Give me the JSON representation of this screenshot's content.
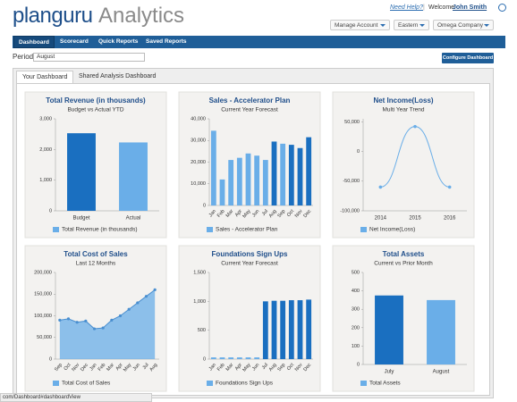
{
  "header": {
    "logo": "planguru",
    "product": "Analytics",
    "help": "Need Help?",
    "separator": "|",
    "welcome": "Welcome",
    "user": "John Smith",
    "menus": [
      "Manage Account",
      "Eastern",
      "Omega Company"
    ]
  },
  "nav": [
    "Dashboard",
    "Scorecard",
    "Quick Reports",
    "Saved Reports"
  ],
  "period": {
    "label": "Period",
    "value": "August"
  },
  "configure": "Configure Dashboard",
  "tabs": [
    "Your Dashboard",
    "Shared Analysis Dashboard"
  ],
  "status": "com/Dashboard#dashboardView",
  "chart_data": [
    {
      "type": "bar",
      "title": "Total Revenue (in thousands)",
      "subtitle": "Budget vs Actual YTD",
      "categories": [
        "Budget",
        "Actual"
      ],
      "series": [
        {
          "name": "Total Revenue (in thousands)",
          "color": "#6aaee8",
          "colors": [
            "#1a6fc0",
            "#6aaee8"
          ],
          "values": [
            2530,
            2230
          ]
        }
      ],
      "ylim": [
        0,
        3000
      ],
      "yticks": [
        0,
        {
          "value": 1000,
          "label": "1,000"
        },
        {
          "value": 2000,
          "label": "2,000"
        },
        {
          "value": 3000,
          "label": "3,000"
        }
      ]
    },
    {
      "type": "bar",
      "title": "Sales - Accelerator Plan",
      "subtitle": "Current Year Forecast",
      "categories": [
        "Jan",
        "Feb",
        "Mar",
        "Apr",
        "May",
        "Jun",
        "Jul",
        "Aug",
        "Sep",
        "Oct",
        "Nov",
        "Dec"
      ],
      "series": [
        {
          "name": "Sales - Accelerator Plan",
          "color": "#6aaee8",
          "colors": [
            "#6aaee8",
            "#6aaee8",
            "#6aaee8",
            "#6aaee8",
            "#6aaee8",
            "#6aaee8",
            "#6aaee8",
            "#1a6fc0",
            "#6aaee8",
            "#1a6fc0",
            "#1a6fc0",
            "#1a6fc0"
          ],
          "values": [
            34500,
            12000,
            21000,
            22000,
            24000,
            23000,
            21000,
            29500,
            28500,
            28000,
            26500,
            31500
          ]
        }
      ],
      "ylim": [
        0,
        40000
      ],
      "yticks": [
        0,
        {
          "value": 10000,
          "label": "10,000"
        },
        {
          "value": 20000,
          "label": "20,000"
        },
        {
          "value": 30000,
          "label": "30,000"
        },
        {
          "value": 40000,
          "label": "40,000"
        }
      ]
    },
    {
      "type": "line",
      "title": "Net Income(Loss)",
      "subtitle": "Multi Year Trend",
      "categories": [
        "2014",
        "2015",
        "2016"
      ],
      "series": [
        {
          "name": "Net Income(Loss)",
          "color": "#6aaee8",
          "values": [
            -60000,
            42000,
            -60000
          ]
        }
      ],
      "ylim": [
        -100000,
        55000
      ],
      "yticks": [
        {
          "value": -100000,
          "label": "-100,000"
        },
        {
          "value": -50000,
          "label": "-50,000"
        },
        0,
        {
          "value": 50000,
          "label": "50,000"
        }
      ]
    },
    {
      "type": "area",
      "title": "Total Cost of Sales",
      "subtitle": "Last 12 Months",
      "categories": [
        "Sep",
        "Oct",
        "Nov",
        "Dec",
        "Jan",
        "Feb",
        "Mar",
        "Apr",
        "May",
        "Jun",
        "Jul",
        "Aug"
      ],
      "series": [
        {
          "name": "Total Cost of Sales",
          "color": "#6aaee8",
          "values": [
            90000,
            93000,
            85000,
            88000,
            70000,
            72000,
            90000,
            100000,
            115000,
            130000,
            145000,
            160000
          ]
        }
      ],
      "ylim": [
        0,
        200000
      ],
      "yticks": [
        0,
        {
          "value": 50000,
          "label": "50,000"
        },
        {
          "value": 100000,
          "label": "100,000"
        },
        {
          "value": 150000,
          "label": "150,000"
        },
        {
          "value": 200000,
          "label": "200,000"
        }
      ]
    },
    {
      "type": "bar",
      "title": "Foundations Sign Ups",
      "subtitle": "Current Year Forecast",
      "categories": [
        "Jan",
        "Feb",
        "Mar",
        "Apr",
        "May",
        "Jun",
        "Jul",
        "Aug",
        "Sep",
        "Oct",
        "Nov",
        "Dec"
      ],
      "series": [
        {
          "name": "Foundations Sign Ups",
          "color": "#6aaee8",
          "colors": [
            "#6aaee8",
            "#6aaee8",
            "#6aaee8",
            "#6aaee8",
            "#6aaee8",
            "#6aaee8",
            "#1a6fc0",
            "#1a6fc0",
            "#1a6fc0",
            "#1a6fc0",
            "#1a6fc0",
            "#1a6fc0"
          ],
          "values": [
            30,
            30,
            30,
            30,
            30,
            30,
            1000,
            1010,
            1010,
            1020,
            1020,
            1030
          ]
        }
      ],
      "ylim": [
        0,
        1500
      ],
      "yticks": [
        0,
        500,
        {
          "value": 1000,
          "label": "1,000"
        },
        {
          "value": 1500,
          "label": "1,500"
        }
      ]
    },
    {
      "type": "bar",
      "title": "Total Assets",
      "subtitle": "Current vs Prior Month",
      "categories": [
        "July",
        "August"
      ],
      "series": [
        {
          "name": "Total Assets",
          "color": "#6aaee8",
          "colors": [
            "#1a6fc0",
            "#6aaee8"
          ],
          "values": [
            375,
            350
          ]
        }
      ],
      "ylim": [
        0,
        500
      ],
      "yticks": [
        0,
        100,
        200,
        300,
        400,
        500
      ]
    }
  ]
}
